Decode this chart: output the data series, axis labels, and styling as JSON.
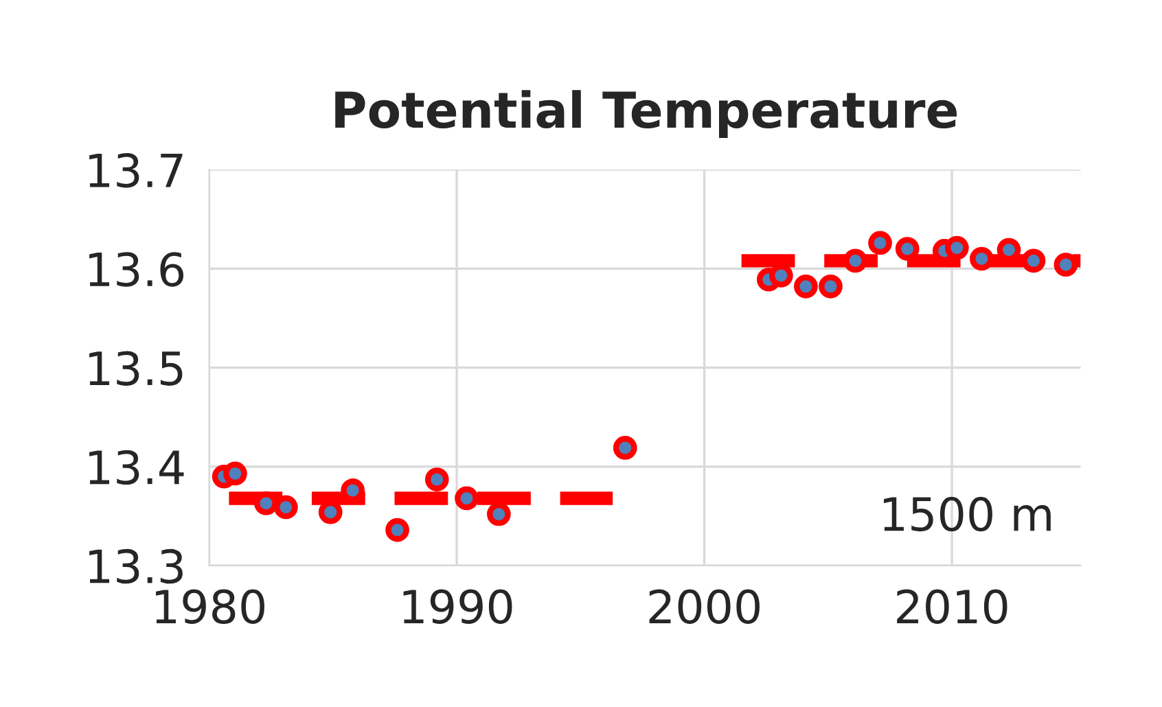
{
  "chart_data": {
    "type": "scatter",
    "title": "Potential Temperature",
    "series": [
      {
        "color": "#ff0000",
        "marker": "circle",
        "x": [
          1980.6,
          1981.05,
          1982.3,
          1983.1,
          1984.9,
          1985.8,
          1987.6,
          1989.2,
          1990.4,
          1991.7,
          1996.8,
          2002.6,
          2003.1,
          2004.1,
          2005.1,
          2006.1,
          2007.1,
          2008.2,
          2009.7,
          2010.2,
          2011.2,
          2012.3,
          2013.3,
          2014.6
        ],
        "values": [
          13.39,
          13.393,
          13.363,
          13.359,
          13.354,
          13.376,
          13.336,
          13.387,
          13.368,
          13.352,
          13.419,
          13.589,
          13.593,
          13.582,
          13.582,
          13.608,
          13.626,
          13.62,
          13.618,
          13.621,
          13.61,
          13.619,
          13.608,
          13.604
        ]
      },
      {
        "type": "line",
        "color": "#ff0000",
        "line_style": "dashed",
        "x": [
          1980.8,
          1996.3
        ],
        "values": [
          13.368,
          13.368
        ]
      },
      {
        "type": "line",
        "color": "#ff0000",
        "line_style": "dashed",
        "x": [
          2001.5,
          2015.2
        ],
        "values": [
          13.608,
          13.608
        ]
      }
    ],
    "xlim": [
      1980,
      2015.2
    ],
    "xticks": [
      1980,
      1990,
      2000,
      2010
    ],
    "ylim": [
      13.3,
      13.7
    ],
    "yticks": [
      13.3,
      13.4,
      13.5,
      13.6,
      13.7
    ],
    "grid": true,
    "annotations": [
      "1500 m"
    ]
  }
}
